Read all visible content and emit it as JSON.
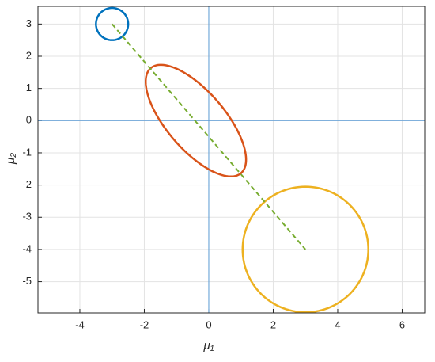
{
  "chart_data": {
    "type": "ellipse",
    "xlabel": "μ₁",
    "ylabel": "μ₂",
    "xlim": [
      -5.3,
      6.7
    ],
    "ylim": [
      -5.97,
      3.55
    ],
    "xticks": [
      -4,
      -2,
      0,
      2,
      4,
      6
    ],
    "yticks": [
      -5,
      -4,
      -3,
      -2,
      -1,
      0,
      1,
      2,
      3
    ],
    "grid": true,
    "reference_lines": {
      "x": 0,
      "y": 0,
      "color": "#5b9bd5"
    },
    "ellipses": [
      {
        "cx": -3,
        "cy": 3,
        "rx": 0.5,
        "ry": 0.5,
        "angle": 0,
        "color": "#0072bd"
      },
      {
        "cx": -0.4,
        "cy": 0,
        "rx": 2.15,
        "ry": 0.9,
        "angle": -49.4,
        "color": "#d95319"
      },
      {
        "cx": 3,
        "cy": -4,
        "rx": 1.95,
        "ry": 1.95,
        "angle": 0,
        "color": "#edb120"
      }
    ],
    "line": {
      "x": [
        -3,
        3
      ],
      "y": [
        3,
        -4
      ],
      "color": "#77ac30"
    }
  }
}
